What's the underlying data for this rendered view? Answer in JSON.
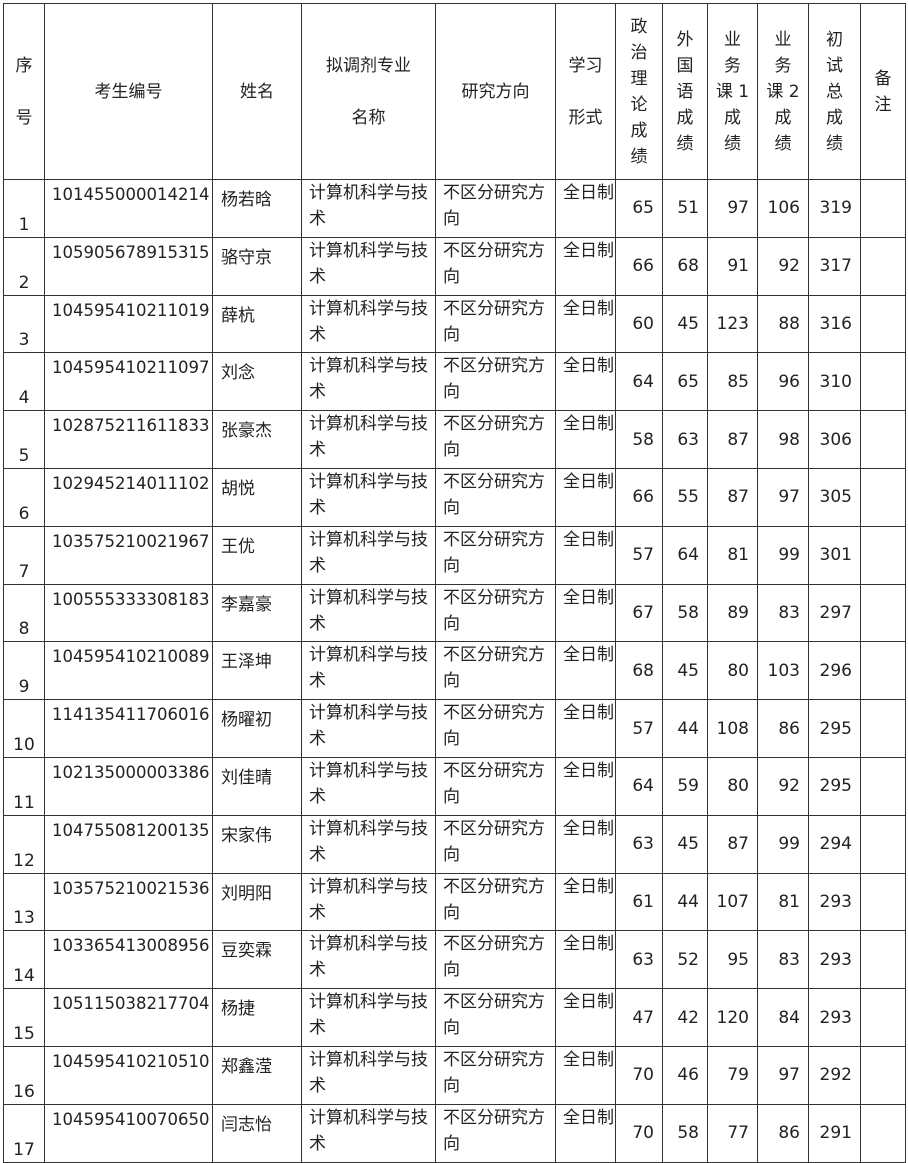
{
  "headers": [
    "序\n\n号",
    "考生编号",
    "姓名",
    "拟调剂专业\n\n名称",
    "研究方向",
    "学习\n\n形式",
    "政\n治\n理\n论\n成\n绩",
    "外\n国\n语\n成\n绩",
    "业\n务\n课 1\n成\n绩",
    "业\n务\n课 2\n成\n绩",
    "初\n试\n总\n成\n绩",
    "备\n注"
  ],
  "rows": [
    [
      "1",
      "101455000014214",
      "杨若晗",
      "计算机科学与技术",
      "不区分研究方向",
      "全日制",
      "65",
      "51",
      "97",
      "106",
      "319",
      ""
    ],
    [
      "2",
      "105905678915315",
      "骆守京",
      "计算机科学与技术",
      "不区分研究方向",
      "全日制",
      "66",
      "68",
      "91",
      "92",
      "317",
      ""
    ],
    [
      "3",
      "104595410211019",
      "薛杭",
      "计算机科学与技术",
      "不区分研究方向",
      "全日制",
      "60",
      "45",
      "123",
      "88",
      "316",
      ""
    ],
    [
      "4",
      "104595410211097",
      "刘念",
      "计算机科学与技术",
      "不区分研究方向",
      "全日制",
      "64",
      "65",
      "85",
      "96",
      "310",
      ""
    ],
    [
      "5",
      "102875211611833",
      "张豪杰",
      "计算机科学与技术",
      "不区分研究方向",
      "全日制",
      "58",
      "63",
      "87",
      "98",
      "306",
      ""
    ],
    [
      "6",
      "102945214011102",
      "胡悦",
      "计算机科学与技术",
      "不区分研究方向",
      "全日制",
      "66",
      "55",
      "87",
      "97",
      "305",
      ""
    ],
    [
      "7",
      "103575210021967",
      "王优",
      "计算机科学与技术",
      "不区分研究方向",
      "全日制",
      "57",
      "64",
      "81",
      "99",
      "301",
      ""
    ],
    [
      "8",
      "100555333308183",
      "李嘉豪",
      "计算机科学与技术",
      "不区分研究方向",
      "全日制",
      "67",
      "58",
      "89",
      "83",
      "297",
      ""
    ],
    [
      "9",
      "104595410210089",
      "王泽坤",
      "计算机科学与技术",
      "不区分研究方向",
      "全日制",
      "68",
      "45",
      "80",
      "103",
      "296",
      ""
    ],
    [
      "10",
      "114135411706016",
      "杨曜初",
      "计算机科学与技术",
      "不区分研究方向",
      "全日制",
      "57",
      "44",
      "108",
      "86",
      "295",
      ""
    ],
    [
      "11",
      "102135000003386",
      "刘佳晴",
      "计算机科学与技术",
      "不区分研究方向",
      "全日制",
      "64",
      "59",
      "80",
      "92",
      "295",
      ""
    ],
    [
      "12",
      "104755081200135",
      "宋家伟",
      "计算机科学与技术",
      "不区分研究方向",
      "全日制",
      "63",
      "45",
      "87",
      "99",
      "294",
      ""
    ],
    [
      "13",
      "103575210021536",
      "刘明阳",
      "计算机科学与技术",
      "不区分研究方向",
      "全日制",
      "61",
      "44",
      "107",
      "81",
      "293",
      ""
    ],
    [
      "14",
      "103365413008956",
      "豆奕霖",
      "计算机科学与技术",
      "不区分研究方向",
      "全日制",
      "63",
      "52",
      "95",
      "83",
      "293",
      ""
    ],
    [
      "15",
      "105115038217704",
      "杨捷",
      "计算机科学与技术",
      "不区分研究方向",
      "全日制",
      "47",
      "42",
      "120",
      "84",
      "293",
      ""
    ],
    [
      "16",
      "104595410210510",
      "郑鑫滢",
      "计算机科学与技术",
      "不区分研究方向",
      "全日制",
      "70",
      "46",
      "79",
      "97",
      "292",
      ""
    ],
    [
      "17",
      "104595410070650",
      "闫志怡",
      "计算机科学与技术",
      "不区分研究方向",
      "全日制",
      "70",
      "58",
      "77",
      "86",
      "291",
      ""
    ]
  ]
}
